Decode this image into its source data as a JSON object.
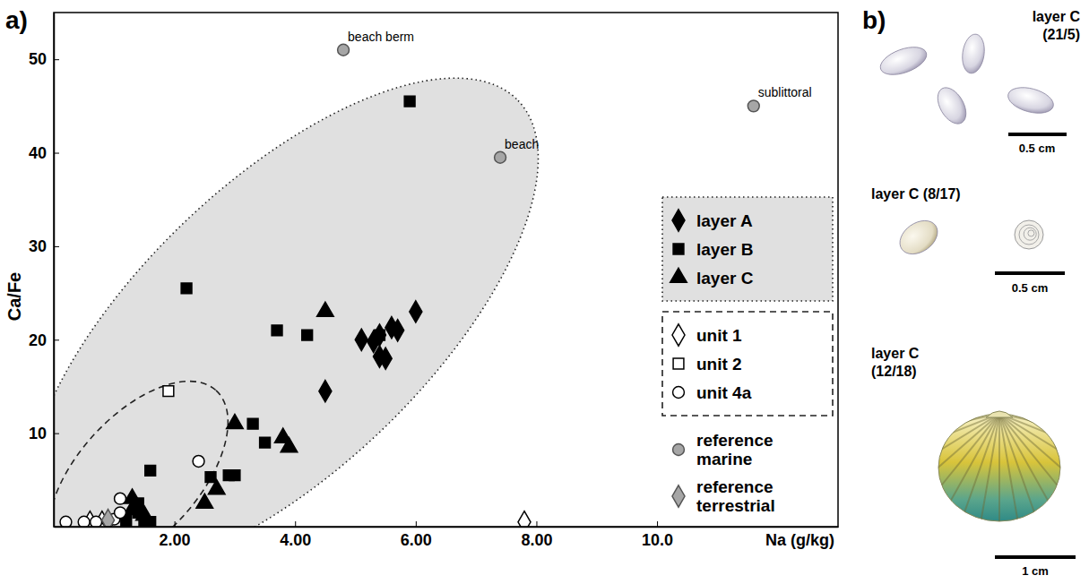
{
  "chart_data": {
    "type": "scatter",
    "x_label": "Na (g/kg)",
    "y_label": "Ca/Fe",
    "xlim": [
      0,
      13
    ],
    "ylim": [
      0,
      55
    ],
    "xticks": [
      {
        "value": 2,
        "label": "2.00"
      },
      {
        "value": 4,
        "label": "4.00"
      },
      {
        "value": 6,
        "label": "6.00"
      },
      {
        "value": 8,
        "label": "8.00"
      },
      {
        "value": 10,
        "label": "10.0"
      }
    ],
    "yticks": [
      10,
      20,
      30,
      40,
      50
    ],
    "legend": "right",
    "series": [
      {
        "name": "layer A",
        "marker": "diamond",
        "color": "#000000",
        "line_style": "dotted",
        "x": [
          5.1,
          5.3,
          5.4,
          5.5,
          5.4,
          5.6,
          5.7,
          6.0,
          4.5
        ],
        "values": [
          20,
          19.8,
          18.2,
          18,
          20.5,
          21.3,
          21,
          23,
          14.5
        ]
      },
      {
        "name": "layer B",
        "marker": "square",
        "color": "#000000",
        "line_style": "dotted",
        "x": [
          5.9,
          2.2,
          3.7,
          4.2,
          5.4,
          3.3,
          3.5,
          3.0,
          2.9,
          2.6,
          1.6,
          1.4,
          1.4,
          1.5,
          1.6,
          1.2
        ],
        "values": [
          45.5,
          25.5,
          21,
          20.5,
          20.5,
          11,
          9,
          5.5,
          5.5,
          5.3,
          6,
          2.5,
          1.5,
          0.6,
          0.5,
          0.6
        ]
      },
      {
        "name": "layer C",
        "marker": "triangle",
        "color": "#000000",
        "line_style": "dotted",
        "x": [
          4.5,
          3.0,
          3.8,
          3.9,
          2.7,
          2.5,
          1.3,
          1.3,
          1.5
        ],
        "values": [
          23,
          11,
          9.5,
          8.5,
          4,
          2.5,
          3,
          1.8,
          1.2
        ]
      },
      {
        "name": "unit 1",
        "marker": "diamond",
        "color": "#ffffff",
        "line_style": "dashed",
        "x": [
          0.6,
          0.8,
          7.8
        ],
        "values": [
          0.5,
          0.5,
          0.5
        ]
      },
      {
        "name": "unit 2",
        "marker": "square",
        "color": "#ffffff",
        "line_style": "dashed",
        "x": [
          1.9
        ],
        "values": [
          14.5
        ]
      },
      {
        "name": "unit 4a",
        "marker": "circle",
        "color": "#ffffff",
        "line_style": "dashed",
        "x": [
          0.2,
          0.5,
          0.7,
          0.9,
          1.0,
          1.1,
          1.1,
          2.4
        ],
        "values": [
          0.5,
          0.5,
          0.5,
          0.6,
          0.8,
          1.5,
          3,
          7
        ]
      },
      {
        "name": "reference marine",
        "marker": "circle",
        "color": "#a6a6a6",
        "x": [
          4.8,
          7.4,
          11.6
        ],
        "values": [
          51,
          39.5,
          45
        ],
        "point_labels": [
          "beach berm",
          "beach",
          "sublittoral"
        ]
      },
      {
        "name": "reference terrestrial",
        "marker": "diamond",
        "color": "#a6a6a6",
        "x": [
          0.9
        ],
        "values": [
          0.7
        ]
      }
    ]
  },
  "panel_labels": [
    "a)",
    "b)"
  ],
  "photos": [
    {
      "caption": [
        "layer C",
        "(21/5)"
      ],
      "scale_bar": "0.5 cm"
    },
    {
      "caption": [
        "layer C (8/17)"
      ],
      "scale_bar": "0.5 cm"
    },
    {
      "caption": [
        "layer C",
        "(12/18)"
      ],
      "scale_bar": "1 cm"
    }
  ]
}
